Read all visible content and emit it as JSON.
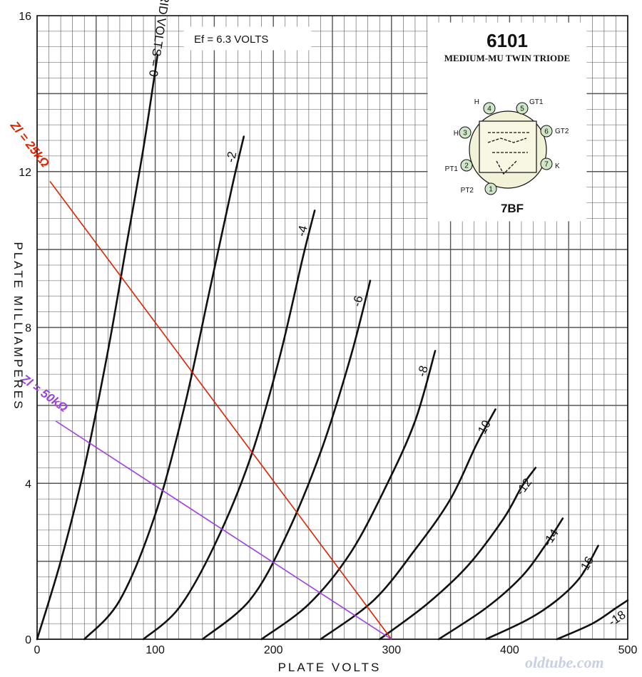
{
  "chart_data": {
    "type": "line",
    "title": "",
    "xlabel": "PLATE VOLTS",
    "ylabel": "PLATE MILLIAMPERES",
    "xlim": [
      0,
      500
    ],
    "ylim": [
      0,
      16
    ],
    "x_ticks": [
      "0",
      "100",
      "200",
      "300",
      "400",
      "500"
    ],
    "y_ticks": [
      "0",
      "4",
      "8",
      "12",
      "16"
    ],
    "grid": true,
    "condition_label": "Ef = 6.3 VOLTS",
    "curve_label_prefix": "GRID VOLTS = ",
    "series": [
      {
        "name": "0",
        "points": [
          [
            0,
            0
          ],
          [
            20,
            2
          ],
          [
            40,
            4.4
          ],
          [
            60,
            7.4
          ],
          [
            75,
            10
          ],
          [
            90,
            12.6
          ],
          [
            102,
            15
          ]
        ]
      },
      {
        "name": "-2",
        "points": [
          [
            40,
            0
          ],
          [
            70,
            1
          ],
          [
            100,
            3.2
          ],
          [
            125,
            6
          ],
          [
            145,
            8.8
          ],
          [
            165,
            11.6
          ],
          [
            175,
            12.9
          ]
        ]
      },
      {
        "name": "-4",
        "points": [
          [
            90,
            0
          ],
          [
            120,
            0.8
          ],
          [
            150,
            2.4
          ],
          [
            180,
            4.6
          ],
          [
            205,
            7.2
          ],
          [
            225,
            9.8
          ],
          [
            235,
            11
          ]
        ]
      },
      {
        "name": "-6",
        "points": [
          [
            140,
            0
          ],
          [
            180,
            1
          ],
          [
            210,
            2.6
          ],
          [
            240,
            4.8
          ],
          [
            265,
            7.2
          ],
          [
            282,
            9.2
          ]
        ]
      },
      {
        "name": "-8",
        "points": [
          [
            190,
            0
          ],
          [
            230,
            0.9
          ],
          [
            265,
            2.2
          ],
          [
            295,
            3.9
          ],
          [
            320,
            5.6
          ],
          [
            337,
            7.4
          ]
        ]
      },
      {
        "name": "-10",
        "points": [
          [
            240,
            0
          ],
          [
            285,
            1
          ],
          [
            320,
            2.3
          ],
          [
            350,
            3.6
          ],
          [
            372,
            5
          ],
          [
            388,
            5.9
          ]
        ]
      },
      {
        "name": "-12",
        "points": [
          [
            290,
            0
          ],
          [
            330,
            0.9
          ],
          [
            365,
            1.9
          ],
          [
            395,
            3.1
          ],
          [
            410,
            3.9
          ],
          [
            422,
            4.4
          ]
        ]
      },
      {
        "name": "-14",
        "points": [
          [
            340,
            0
          ],
          [
            380,
            0.8
          ],
          [
            410,
            1.6
          ],
          [
            430,
            2.4
          ],
          [
            445,
            3.1
          ]
        ]
      },
      {
        "name": "-16",
        "points": [
          [
            380,
            0
          ],
          [
            415,
            0.5
          ],
          [
            440,
            1
          ],
          [
            460,
            1.6
          ],
          [
            475,
            2.4
          ]
        ]
      },
      {
        "name": "-18",
        "points": [
          [
            440,
            0
          ],
          [
            470,
            0.4
          ],
          [
            490,
            0.8
          ],
          [
            500,
            1
          ]
        ]
      }
    ],
    "series_label_display": [
      "0",
      "-2",
      "-4",
      "-6",
      "-8",
      "-10",
      "-12",
      "-14",
      "-16",
      "-18"
    ],
    "load_lines": [
      {
        "name": "Zl = 25kΩ",
        "color": "#dd2200",
        "points": [
          [
            0,
            12
          ],
          [
            300,
            0
          ]
        ]
      },
      {
        "name": "Zl = 50kΩ",
        "color": "#a040e0",
        "points": [
          [
            0,
            6
          ],
          [
            300,
            0
          ]
        ]
      }
    ]
  },
  "inset": {
    "title": "6101",
    "subtitle": "MEDIUM-MU TWIN TRIODE",
    "basing": "7BF",
    "pins": [
      {
        "num": "1",
        "name": "PT2"
      },
      {
        "num": "2",
        "name": "PT1"
      },
      {
        "num": "3",
        "name": "H"
      },
      {
        "num": "4",
        "name": "H"
      },
      {
        "num": "5",
        "name": "GT1"
      },
      {
        "num": "6",
        "name": "GT2"
      },
      {
        "num": "7",
        "name": "K"
      }
    ]
  },
  "watermark": "oldtube.com",
  "colors": {
    "grid": "#555555",
    "curve": "#111111",
    "pin_fill": "#cfe6c8"
  }
}
